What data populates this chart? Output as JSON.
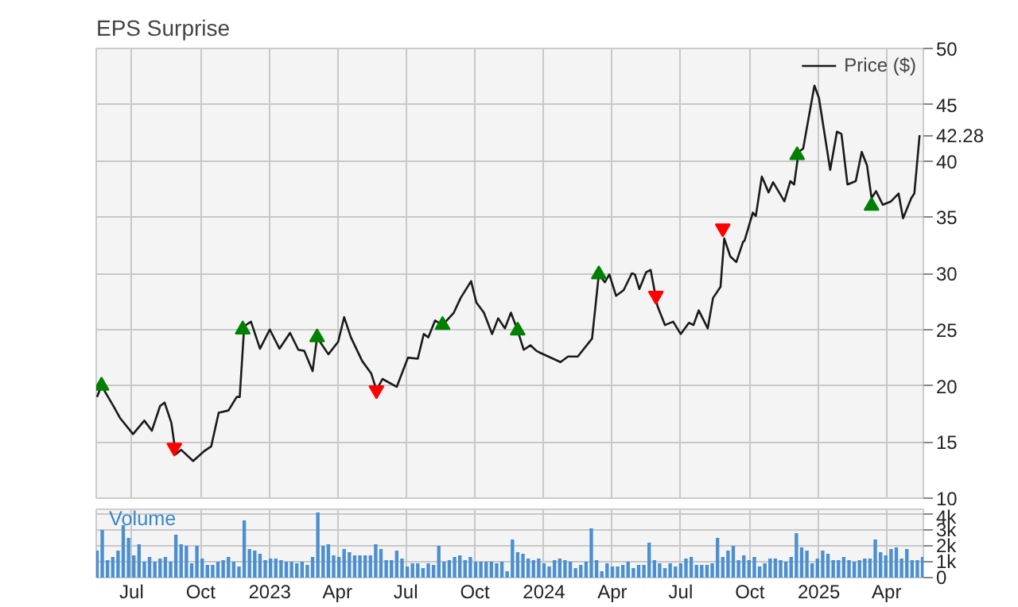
{
  "chart_data": [
    {
      "type": "line",
      "title": "EPS Surprise",
      "xlim": [
        "2022-05-15",
        "2025-05-20"
      ],
      "ylim": [
        10,
        50
      ],
      "xticks": [
        {
          "value": "2022-07-01",
          "label": null
        },
        {
          "value": "2022-10-01",
          "label": null
        },
        {
          "value": "2023-01-01",
          "label": null
        },
        {
          "value": "2023-04-01",
          "label": null
        },
        {
          "value": "2023-07-01",
          "label": null
        },
        {
          "value": "2023-10-01",
          "label": null
        },
        {
          "value": "2024-01-01",
          "label": null
        },
        {
          "value": "2024-04-01",
          "label": null
        },
        {
          "value": "2024-07-01",
          "label": null
        },
        {
          "value": "2024-10-01",
          "label": null
        },
        {
          "value": "2025-01-01",
          "label": null
        },
        {
          "value": "2025-04-01",
          "label": null
        }
      ],
      "yticks": [
        10,
        15,
        20,
        25,
        30,
        35,
        40,
        45,
        50
      ],
      "grid": true,
      "legend": "top right",
      "tick_labels": "y",
      "annotations": [
        {
          "text": "42.28",
          "x": "2025-05-15",
          "y": 42.28
        }
      ],
      "series": [
        {
          "name": "Price ($)",
          "type": "line",
          "color": "#1a1a1a",
          "x": [
            "2022-05-16",
            "2022-05-22",
            "2022-06-06",
            "2022-06-16",
            "2022-07-03",
            "2022-07-18",
            "2022-07-28",
            "2022-08-08",
            "2022-08-14",
            "2022-08-23",
            "2022-08-29",
            "2022-09-05",
            "2022-09-21",
            "2022-10-06",
            "2022-10-15",
            "2022-10-25",
            "2022-11-07",
            "2022-11-18",
            "2022-11-22",
            "2022-11-28",
            "2022-12-07",
            "2022-12-19",
            "2023-01-01",
            "2023-01-14",
            "2023-01-28",
            "2023-02-08",
            "2023-02-16",
            "2023-02-27",
            "2023-03-05",
            "2023-03-20",
            "2023-04-02",
            "2023-04-10",
            "2023-04-19",
            "2023-05-04",
            "2023-05-16",
            "2023-05-23",
            "2023-05-31",
            "2023-06-19",
            "2023-07-04",
            "2023-07-17",
            "2023-07-25",
            "2023-07-31",
            "2023-08-09",
            "2023-08-19",
            "2023-09-03",
            "2023-09-12",
            "2023-09-26",
            "2023-10-03",
            "2023-10-13",
            "2023-10-24",
            "2023-11-01",
            "2023-11-10",
            "2023-11-18",
            "2023-11-27",
            "2023-12-05",
            "2023-12-14",
            "2023-12-22",
            "2023-12-28",
            "2024-01-23",
            "2024-02-02",
            "2024-02-15",
            "2024-03-05",
            "2024-03-14",
            "2024-03-22",
            "2024-03-28",
            "2024-04-06",
            "2024-04-16",
            "2024-04-27",
            "2024-05-01",
            "2024-05-07",
            "2024-05-16",
            "2024-05-22",
            "2024-05-31",
            "2024-06-10",
            "2024-06-21",
            "2024-07-01",
            "2024-07-12",
            "2024-07-18",
            "2024-07-25",
            "2024-08-06",
            "2024-08-13",
            "2024-08-23",
            "2024-08-28",
            "2024-09-05",
            "2024-09-13",
            "2024-09-22",
            "2024-09-24",
            "2024-10-05",
            "2024-10-09",
            "2024-10-17",
            "2024-10-26",
            "2024-11-01",
            "2024-11-16",
            "2024-11-24",
            "2024-11-29",
            "2024-12-05",
            "2024-12-11",
            "2024-12-26",
            "2025-01-01",
            "2025-01-16",
            "2025-01-25",
            "2025-01-31",
            "2025-02-08",
            "2025-02-19",
            "2025-02-27",
            "2025-03-06",
            "2025-03-12",
            "2025-03-18",
            "2025-03-27",
            "2025-04-07",
            "2025-04-17",
            "2025-04-23",
            "2025-05-04",
            "2025-05-08",
            "2025-05-15"
          ],
          "values": [
            19.0,
            20.0,
            18.3,
            17.1,
            15.7,
            16.9,
            16.0,
            18.2,
            18.5,
            16.7,
            13.9,
            14.3,
            13.3,
            14.2,
            14.6,
            17.6,
            17.8,
            19.0,
            19.0,
            25.3,
            25.7,
            23.3,
            25.0,
            23.3,
            24.7,
            23.2,
            23.1,
            21.3,
            24.3,
            22.8,
            23.9,
            26.1,
            24.3,
            22.2,
            21.1,
            19.6,
            20.6,
            19.9,
            22.5,
            22.4,
            24.6,
            24.3,
            25.8,
            25.4,
            26.5,
            27.8,
            29.3,
            27.4,
            26.5,
            24.6,
            26.0,
            25.1,
            26.5,
            24.9,
            23.2,
            23.6,
            23.1,
            22.9,
            22.1,
            22.6,
            22.6,
            24.2,
            29.9,
            29.2,
            29.9,
            28.0,
            28.5,
            30.0,
            29.9,
            28.6,
            30.1,
            30.3,
            27.1,
            25.4,
            25.7,
            24.6,
            25.6,
            25.4,
            26.7,
            25.1,
            27.8,
            28.8,
            33.1,
            31.5,
            31.0,
            32.8,
            32.9,
            35.4,
            35.1,
            38.6,
            37.2,
            38.1,
            36.4,
            38.2,
            37.9,
            40.8,
            41.1,
            46.7,
            45.6,
            39.2,
            42.6,
            42.4,
            37.9,
            38.2,
            40.8,
            39.6,
            36.7,
            37.3,
            36.1,
            36.4,
            37.1,
            34.9,
            36.7,
            37.1,
            42.28
          ]
        },
        {
          "type": "scatter",
          "marker": "triangle",
          "color": "#008000",
          "x": [
            "2022-05-22",
            "2022-11-26",
            "2023-03-05",
            "2023-08-19",
            "2023-11-27",
            "2024-03-14",
            "2024-12-03",
            "2025-03-12"
          ],
          "values": [
            20.0,
            25.0,
            24.3,
            25.4,
            24.9,
            29.9,
            40.5,
            36.0
          ]
        },
        {
          "type": "scatter",
          "color": "#ff0000",
          "x": [
            "2022-08-27",
            "2023-05-23",
            "2024-05-29",
            "2024-08-26"
          ],
          "values": [
            14.5,
            19.6,
            28.0,
            34.0
          ]
        }
      ]
    },
    {
      "type": "bar",
      "title": "Volume",
      "xlim": [
        "2022-05-15",
        "2025-05-20"
      ],
      "ylim": [
        0,
        4.3
      ],
      "xticks": [
        {
          "value": "2022-07-01",
          "label": "Jul"
        },
        {
          "value": "2022-10-01",
          "label": "Oct"
        },
        {
          "value": "2023-01-01",
          "label": "2023"
        },
        {
          "value": "2023-04-01",
          "label": "Apr"
        },
        {
          "value": "2023-07-01",
          "label": "Jul"
        },
        {
          "value": "2023-10-01",
          "label": "Oct"
        },
        {
          "value": "2024-01-01",
          "label": "2024"
        },
        {
          "value": "2024-04-01",
          "label": "Apr"
        },
        {
          "value": "2024-07-01",
          "label": "Jul"
        },
        {
          "value": "2024-10-01",
          "label": "Oct"
        },
        {
          "value": "2025-01-01",
          "label": "2025"
        },
        {
          "value": "2025-04-01",
          "label": "Apr"
        }
      ],
      "yticks": [
        0,
        {
          "value": 1,
          "label": "1k"
        },
        {
          "value": 2,
          "label": "2k"
        },
        {
          "value": 3,
          "label": "3k"
        },
        {
          "value": 4,
          "label": "4k"
        }
      ],
      "grid": true,
      "series": [
        {
          "color": "#4a8fcf",
          "x": [
            "2022-05-16",
            "2022-05-23",
            "2022-05-30",
            "2022-06-06",
            "2022-06-13",
            "2022-06-20",
            "2022-06-27",
            "2022-07-04",
            "2022-07-11",
            "2022-07-18",
            "2022-07-25",
            "2022-08-01",
            "2022-08-08",
            "2022-08-15",
            "2022-08-22",
            "2022-08-29",
            "2022-09-05",
            "2022-09-12",
            "2022-09-19",
            "2022-09-26",
            "2022-10-03",
            "2022-10-10",
            "2022-10-17",
            "2022-10-24",
            "2022-10-31",
            "2022-11-07",
            "2022-11-14",
            "2022-11-21",
            "2022-11-28",
            "2022-12-05",
            "2022-12-12",
            "2022-12-19",
            "2022-12-26",
            "2023-01-02",
            "2023-01-09",
            "2023-01-16",
            "2023-01-23",
            "2023-01-30",
            "2023-02-06",
            "2023-02-13",
            "2023-02-20",
            "2023-02-27",
            "2023-03-06",
            "2023-03-13",
            "2023-03-20",
            "2023-03-27",
            "2023-04-03",
            "2023-04-10",
            "2023-04-17",
            "2023-04-24",
            "2023-05-01",
            "2023-05-08",
            "2023-05-15",
            "2023-05-22",
            "2023-05-29",
            "2023-06-05",
            "2023-06-12",
            "2023-06-19",
            "2023-06-26",
            "2023-07-03",
            "2023-07-10",
            "2023-07-17",
            "2023-07-24",
            "2023-07-31",
            "2023-08-07",
            "2023-08-14",
            "2023-08-21",
            "2023-08-28",
            "2023-09-04",
            "2023-09-11",
            "2023-09-18",
            "2023-09-25",
            "2023-10-02",
            "2023-10-09",
            "2023-10-16",
            "2023-10-23",
            "2023-10-30",
            "2023-11-06",
            "2023-11-13",
            "2023-11-20",
            "2023-11-27",
            "2023-12-04",
            "2023-12-11",
            "2023-12-18",
            "2023-12-25",
            "2024-01-01",
            "2024-01-08",
            "2024-01-15",
            "2024-01-22",
            "2024-01-29",
            "2024-02-05",
            "2024-02-12",
            "2024-02-19",
            "2024-02-26",
            "2024-03-04",
            "2024-03-11",
            "2024-03-18",
            "2024-03-25",
            "2024-04-01",
            "2024-04-08",
            "2024-04-15",
            "2024-04-22",
            "2024-04-29",
            "2024-05-06",
            "2024-05-13",
            "2024-05-20",
            "2024-05-27",
            "2024-06-03",
            "2024-06-10",
            "2024-06-17",
            "2024-06-24",
            "2024-07-01",
            "2024-07-08",
            "2024-07-15",
            "2024-07-22",
            "2024-07-29",
            "2024-08-05",
            "2024-08-12",
            "2024-08-19",
            "2024-08-26",
            "2024-09-02",
            "2024-09-09",
            "2024-09-16",
            "2024-09-23",
            "2024-09-30",
            "2024-10-07",
            "2024-10-14",
            "2024-10-21",
            "2024-10-28",
            "2024-11-04",
            "2024-11-11",
            "2024-11-18",
            "2024-11-25",
            "2024-12-02",
            "2024-12-09",
            "2024-12-16",
            "2024-12-23",
            "2024-12-30",
            "2025-01-06",
            "2025-01-13",
            "2025-01-20",
            "2025-01-27",
            "2025-02-03",
            "2025-02-10",
            "2025-02-17",
            "2025-02-24",
            "2025-03-03",
            "2025-03-10",
            "2025-03-17",
            "2025-03-24",
            "2025-03-31",
            "2025-04-07",
            "2025-04-14",
            "2025-04-21",
            "2025-04-28",
            "2025-05-05",
            "2025-05-12",
            "2025-05-19"
          ],
          "values": [
            1.7,
            3.0,
            1.1,
            1.3,
            1.7,
            3.3,
            2.5,
            1.4,
            2.1,
            1.0,
            1.3,
            1.0,
            1.2,
            1.3,
            1.0,
            2.7,
            2.1,
            2.0,
            0.9,
            2.0,
            1.2,
            0.8,
            0.8,
            1.0,
            1.1,
            1.3,
            1.0,
            0.7,
            3.6,
            1.8,
            1.7,
            1.5,
            1.1,
            1.2,
            1.2,
            1.1,
            1.0,
            1.0,
            0.9,
            1.0,
            0.8,
            1.3,
            4.1,
            2.0,
            2.1,
            1.4,
            1.3,
            1.8,
            1.6,
            1.4,
            1.4,
            1.4,
            1.4,
            2.1,
            1.8,
            1.1,
            1.1,
            1.7,
            1.2,
            0.7,
            0.9,
            0.9,
            0.6,
            0.9,
            0.8,
            2.0,
            1.0,
            1.1,
            1.3,
            1.4,
            1.1,
            1.3,
            1.0,
            1.0,
            1.0,
            1.0,
            0.9,
            1.0,
            0.4,
            2.4,
            1.6,
            1.5,
            1.2,
            1.1,
            1.2,
            0.9,
            0.7,
            1.1,
            1.2,
            1.1,
            1.0,
            0.6,
            0.8,
            1.0,
            3.1,
            1.1,
            0.4,
            0.9,
            0.7,
            0.7,
            0.8,
            1.0,
            0.6,
            0.8,
            0.8,
            2.2,
            1.1,
            0.9,
            0.6,
            0.9,
            0.7,
            0.9,
            1.2,
            1.3,
            0.8,
            0.8,
            0.8,
            0.9,
            2.5,
            1.3,
            1.7,
            2.0,
            1.1,
            1.4,
            1.1,
            1.3,
            0.7,
            0.9,
            1.2,
            1.2,
            1.1,
            1.0,
            1.3,
            2.8,
            1.9,
            1.7,
            0.9,
            1.2,
            1.7,
            1.5,
            1.1,
            1.1,
            1.3,
            1.1,
            1.0,
            1.1,
            1.2,
            1.2,
            2.4,
            1.6,
            1.4,
            1.8,
            1.9,
            1.2,
            1.8,
            1.1,
            1.1,
            1.3
          ]
        }
      ]
    }
  ]
}
